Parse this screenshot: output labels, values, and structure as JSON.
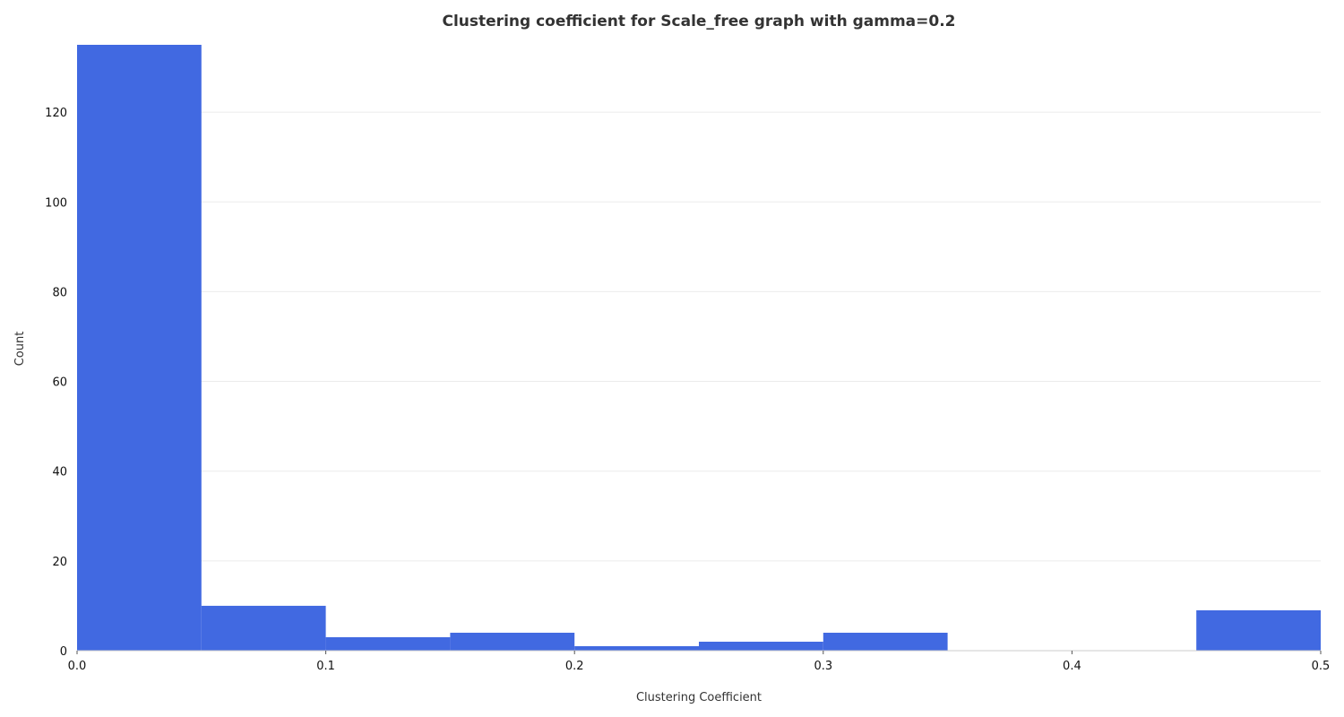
{
  "chart_data": {
    "type": "bar",
    "title": "Clustering coefficient for Scale_free graph with gamma=0.2",
    "xlabel": "Clustering Coefficient",
    "ylabel": "Count",
    "bin_edges": [
      0.0,
      0.05,
      0.1,
      0.15,
      0.2,
      0.25,
      0.3,
      0.35,
      0.4,
      0.45,
      0.5
    ],
    "values": [
      135,
      10,
      3,
      4,
      1,
      2,
      4,
      0,
      0,
      9
    ],
    "xlim": [
      0.0,
      0.5
    ],
    "ylim": [
      0,
      135
    ],
    "xticks": [
      0.0,
      0.1,
      0.2,
      0.3,
      0.4,
      0.5
    ],
    "xtick_labels": [
      "0.0",
      "0.1",
      "0.2",
      "0.3",
      "0.4",
      "0.5"
    ],
    "yticks": [
      0,
      20,
      40,
      60,
      80,
      100,
      120
    ],
    "ytick_labels": [
      "0",
      "20",
      "40",
      "60",
      "80",
      "100",
      "120"
    ],
    "bar_color": "#4169E1",
    "grid": true
  }
}
